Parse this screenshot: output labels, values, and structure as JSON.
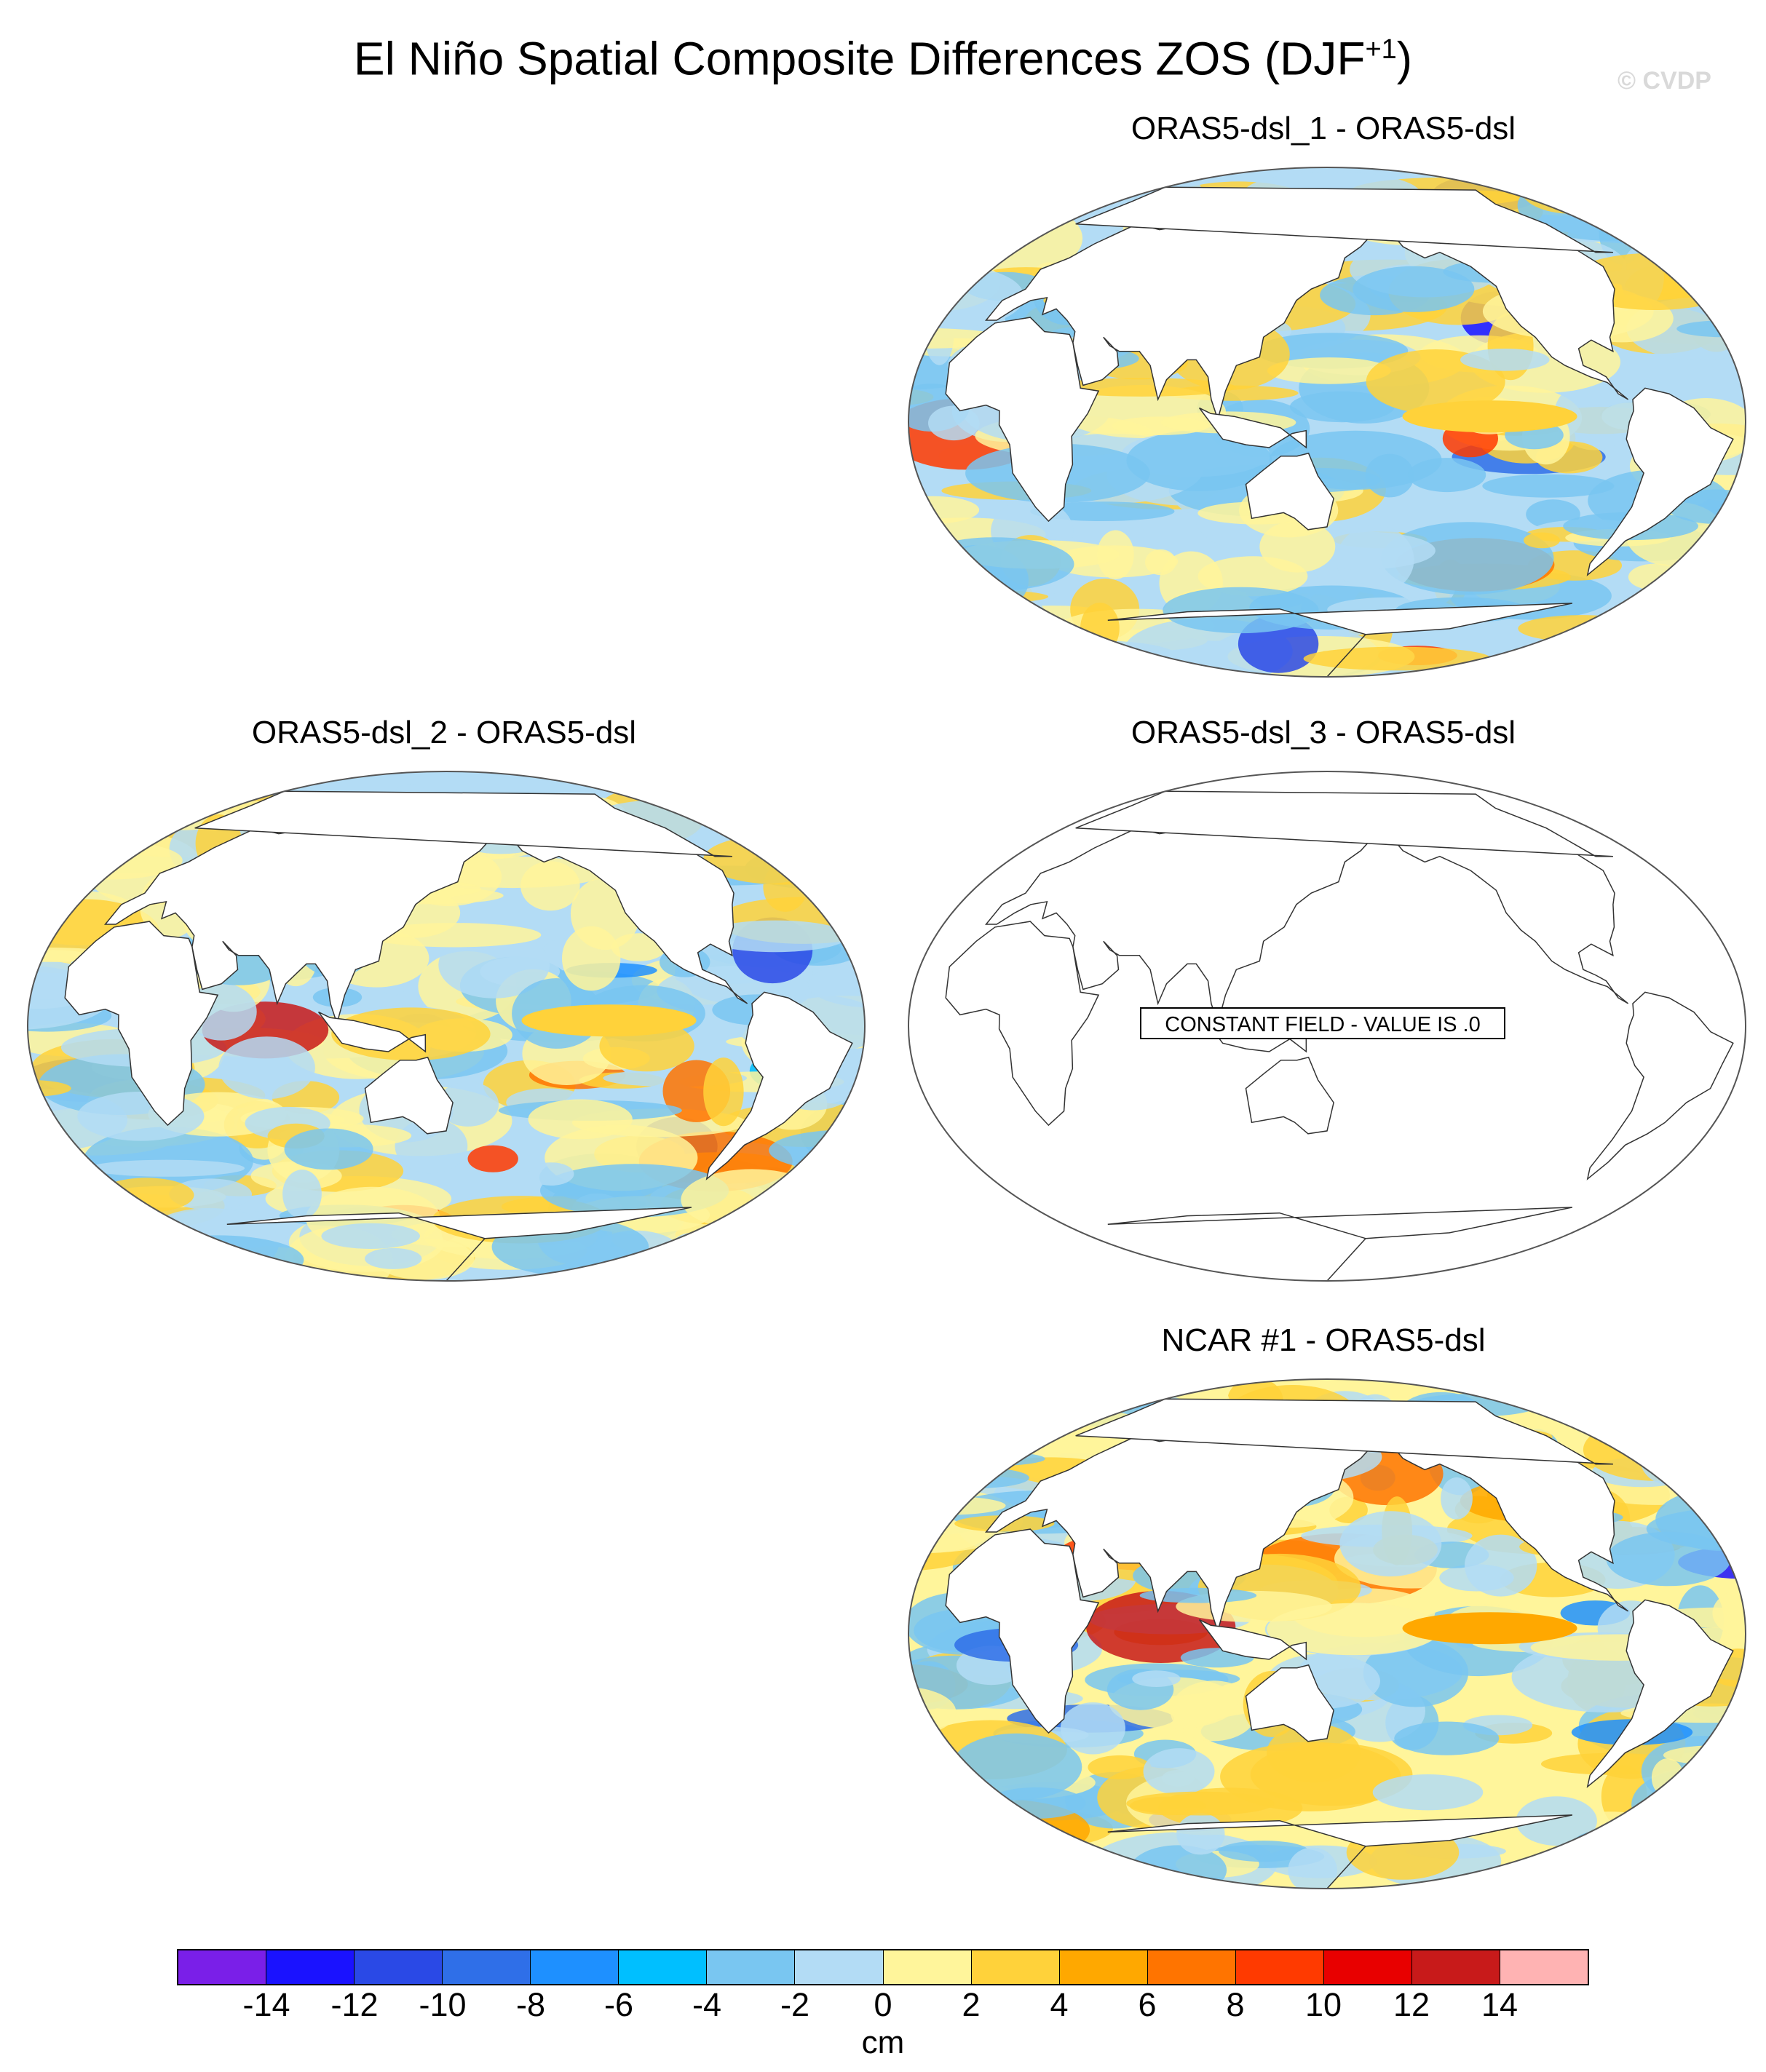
{
  "title": {
    "main": "El Niño Spatial Composite Differences ZOS (DJF",
    "superscript": "+1",
    "close": ")"
  },
  "watermark": "© CVDP",
  "panels": [
    {
      "label": "ORAS5-dsl_1 - ORAS5-dsl",
      "constant": false,
      "seed": 11
    },
    {
      "label": "ORAS5-dsl_2 - ORAS5-dsl",
      "constant": false,
      "seed": 23
    },
    {
      "label": "ORAS5-dsl_3 - ORAS5-dsl",
      "constant": true,
      "constant_text": "CONSTANT FIELD - VALUE IS .0"
    },
    {
      "label": "NCAR #1 - ORAS5-dsl",
      "constant": false,
      "seed": 37
    }
  ],
  "colorbar": {
    "units": "cm",
    "colors": [
      "#7a1fe8",
      "#1a12ff",
      "#2a49e6",
      "#2f6fe8",
      "#1e90ff",
      "#00bfff",
      "#79c6f1",
      "#b3dcf5",
      "#fff59b",
      "#ffd23a",
      "#ffa800",
      "#ff7400",
      "#ff3a00",
      "#e80000",
      "#c81a1a",
      "#ffb3b3"
    ],
    "ticks": [
      "-14",
      "-12",
      "-10",
      "-8",
      "-6",
      "-4",
      "-2",
      "0",
      "2",
      "4",
      "6",
      "8",
      "10",
      "12",
      "14"
    ]
  }
}
